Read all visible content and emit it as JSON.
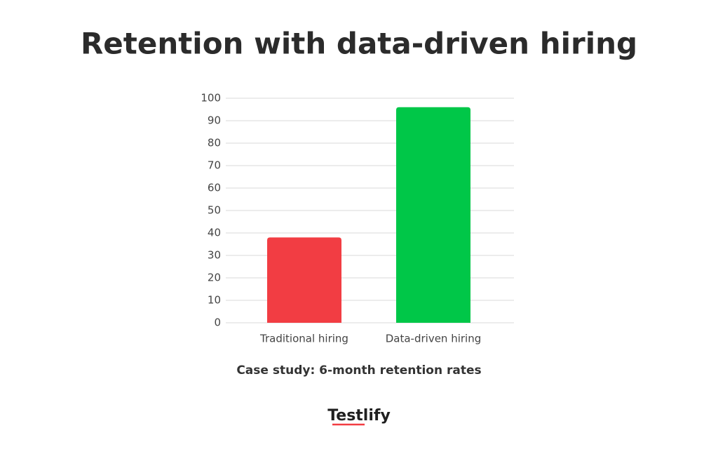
{
  "chart_data": {
    "type": "bar",
    "title": "Retention with data-driven hiring",
    "x_label": "Case study: 6-month retention rates",
    "categories": [
      "Traditional hiring",
      "Data-driven hiring"
    ],
    "values": [
      38,
      96
    ],
    "colors": [
      "#f23d43",
      "#00c748"
    ],
    "ylim": [
      0,
      100
    ],
    "yticks": [
      0,
      10,
      20,
      30,
      40,
      50,
      60,
      70,
      80,
      90,
      100
    ],
    "grid": true
  },
  "brand": "Testlify"
}
